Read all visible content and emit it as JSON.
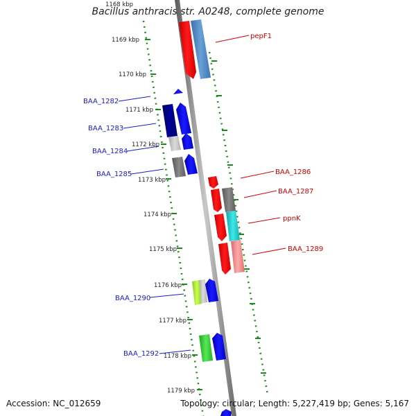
{
  "title": "Bacillus anthracis str. A0248, complete genome",
  "footer": {
    "accession": "Accession: NC_012659",
    "stats": "Topology: circular; Length: 5,227,419 bp; Genes: 5,167"
  },
  "scale_ticks": [
    "1168 kbp",
    "1169 kbp",
    "1170 kbp",
    "1171 kbp",
    "1172 kbp",
    "1173 kbp",
    "1174 kbp",
    "1175 kbp",
    "1176 kbp",
    "1177 kbp",
    "1178 kbp",
    "1179 kbp"
  ],
  "genes_reverse": [
    {
      "label": "BAA_1282",
      "color": "#0000ff"
    },
    {
      "label": "BAA_1283",
      "color": "#0000ff"
    },
    {
      "label": "BAA_1284",
      "color": "#0000ff"
    },
    {
      "label": "BAA_1285",
      "color": "#0000ff"
    },
    {
      "label": "BAA_1290",
      "color": "#0000ff"
    },
    {
      "label": "BAA_1292",
      "color": "#0000ff"
    }
  ],
  "genes_forward": [
    {
      "label": "pepF1",
      "color": "#ff0000"
    },
    {
      "label": "BAA_1286",
      "color": "#ff0000"
    },
    {
      "label": "BAA_1287",
      "color": "#ff0000"
    },
    {
      "label": "ppnK",
      "color": "#ff0000"
    },
    {
      "label": "BAA_1289",
      "color": "#ff0000"
    }
  ],
  "colors": {
    "backbone": "#7a7a7a",
    "tick_dots": "#1a8a1a",
    "label_reverse": "#1a1acc",
    "label_forward": "#cc0000",
    "feature_dark_blue": "#00007a",
    "feature_steel_blue": "#4a86c0",
    "feature_gray": "#707070",
    "feature_cyan": "#19c8c8",
    "feature_salmon": "#f08888",
    "feature_yellow_green": "#a8e62e",
    "feature_green": "#32c832"
  }
}
